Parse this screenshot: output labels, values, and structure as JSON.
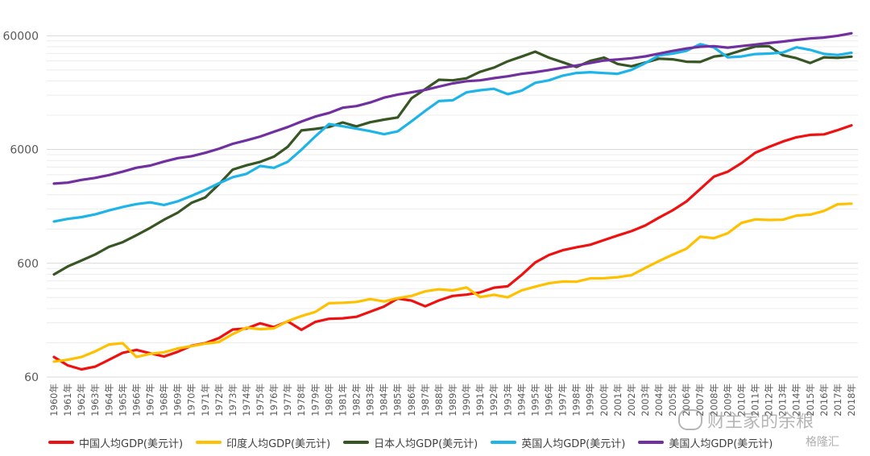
{
  "chart_data": {
    "type": "line",
    "title": "",
    "xlabel": "",
    "ylabel": "",
    "yscale": "log",
    "ylim": [
      60,
      100000
    ],
    "yticks": [
      "60",
      "600",
      "6000",
      "60000"
    ],
    "grid": true,
    "legend_position": "bottom",
    "x": [
      "1960年",
      "1961年",
      "1962年",
      "1963年",
      "1964年",
      "1965年",
      "1966年",
      "1967年",
      "1968年",
      "1969年",
      "1970年",
      "1971年",
      "1972年",
      "1973年",
      "1974年",
      "1975年",
      "1976年",
      "1977年",
      "1978年",
      "1979年",
      "1980年",
      "1981年",
      "1982年",
      "1983年",
      "1984年",
      "1985年",
      "1986年",
      "1987年",
      "1988年",
      "1989年",
      "1990年",
      "1991年",
      "1992年",
      "1993年",
      "1994年",
      "1995年",
      "1996年",
      "1997年",
      "1998年",
      "1999年",
      "2000年",
      "2001年",
      "2002年",
      "2003年",
      "2004年",
      "2005年",
      "2006年",
      "2007年",
      "2008年",
      "2009年",
      "2010年",
      "2011年",
      "2012年",
      "2013年",
      "2014年",
      "2015年",
      "2016年",
      "2017年",
      "2018年"
    ],
    "series": [
      {
        "name": "中国人均GDP(美元计)",
        "color": "#ee1111",
        "values": [
          90,
          76,
          70,
          74,
          85,
          98,
          104,
          97,
          91,
          100,
          113,
          119,
          132,
          157,
          160,
          178,
          165,
          185,
          156,
          183,
          195,
          197,
          203,
          225,
          250,
          294,
          282,
          251,
          283,
          310,
          318,
          333,
          366,
          377,
          473,
          610,
          709,
          781,
          829,
          873,
          959,
          1053,
          1149,
          1289,
          1509,
          1753,
          2099,
          2694,
          3468,
          3832,
          4550,
          5618,
          6317,
          7051,
          7679,
          8067,
          8148,
          8879,
          9771
        ]
      },
      {
        "name": "印度人均GDP(美元计)",
        "color": "#ffc000",
        "values": [
          82,
          85,
          90,
          101,
          116,
          119,
          90,
          96,
          99,
          107,
          112,
          118,
          122,
          143,
          163,
          158,
          161,
          186,
          206,
          224,
          267,
          270,
          274,
          291,
          277,
          296,
          310,
          340,
          354,
          346,
          368,
          303,
          317,
          301,
          346,
          374,
          400,
          415,
          413,
          442,
          443,
          452,
          471,
          546,
          627,
          714,
          806,
          1028,
          998,
          1101,
          1358,
          1458,
          1443,
          1450,
          1574,
          1606,
          1732,
          1981,
          2005
        ]
      },
      {
        "name": "日本人均GDP(美元计)",
        "color": "#375623",
        "values": [
          479,
          563,
          634,
          718,
          836,
          920,
          1059,
          1229,
          1450,
          1669,
          2037,
          2272,
          2967,
          3997,
          4354,
          4674,
          5197,
          6335,
          8821,
          9105,
          9465,
          10361,
          9578,
          10425,
          10984,
          11465,
          16882,
          20355,
          24593,
          24313,
          25359,
          28925,
          31465,
          35766,
          39268,
          43440,
          38437,
          35022,
          31903,
          36026,
          38532,
          33846,
          32289,
          34808,
          37688,
          37218,
          35434,
          35275,
          39339,
          40855,
          44508,
          48168,
          48603,
          40454,
          38109,
          34524,
          38794,
          38332,
          39287
        ]
      },
      {
        "name": "英国人均GDP(美元计)",
        "color": "#1fb4e8",
        "values": [
          1398,
          1472,
          1526,
          1613,
          1748,
          1874,
          1987,
          2058,
          1952,
          2101,
          2348,
          2650,
          3030,
          3426,
          3666,
          4299,
          4138,
          4682,
          5976,
          7804,
          10032,
          9599,
          9146,
          8692,
          8179,
          8652,
          10612,
          13118,
          15987,
          16239,
          19095,
          19900,
          20487,
          18389,
          19709,
          23123,
          24332,
          26734,
          28214,
          28669,
          28150,
          27744,
          30057,
          34419,
          40290,
          41732,
          44252,
          50566,
          47287,
          38713,
          39436,
          41412,
          41790,
          42724,
          47452,
          45071,
          41499,
          40572,
          42491
        ]
      },
      {
        "name": "美国人均GDP(美元计)",
        "color": "#7030a0",
        "values": [
          3007,
          3067,
          3244,
          3375,
          3574,
          3828,
          4146,
          4336,
          4696,
          5032,
          5234,
          5609,
          6094,
          6726,
          7226,
          7801,
          8592,
          9453,
          10565,
          11674,
          12575,
          13976,
          14434,
          15544,
          17121,
          18237,
          19071,
          20039,
          21417,
          22857,
          23889,
          24342,
          25419,
          26387,
          27695,
          28691,
          29968,
          31459,
          32854,
          34515,
          36335,
          37133,
          38023,
          39496,
          41713,
          44115,
          46300,
          48050,
          48571,
          47195,
          48651,
          50066,
          51785,
          53292,
          55124,
          56763,
          57867,
          59915,
          62997
        ]
      }
    ]
  },
  "legend": {
    "items": [
      {
        "label": "中国人均GDP(美元计)",
        "color": "#ee1111"
      },
      {
        "label": "印度人均GDP(美元计)",
        "color": "#ffc000"
      },
      {
        "label": "日本人均GDP(美元计)",
        "color": "#375623"
      },
      {
        "label": "英国人均GDP(美元计)",
        "color": "#1fb4e8"
      },
      {
        "label": "美国人均GDP(美元计)",
        "color": "#7030a0"
      }
    ]
  },
  "watermark": {
    "text": "财主家的余粮",
    "sub": "格隆汇"
  }
}
